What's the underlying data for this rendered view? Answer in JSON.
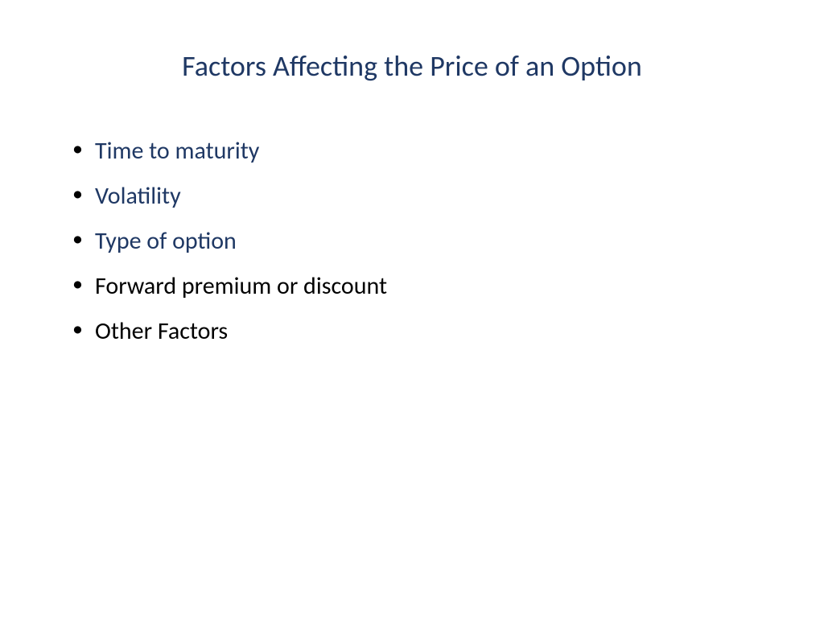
{
  "slide": {
    "title": "Factors Affecting the Price of an Option",
    "title_color": "#1f3864",
    "title_fontsize": 36,
    "background_color": "#ffffff",
    "bullets": [
      {
        "text": "Time to maturity",
        "color": "#1f3864"
      },
      {
        "text": "Volatility",
        "color": "#1f3864"
      },
      {
        "text": "Type of option",
        "color": "#1f3864"
      },
      {
        "text": "Forward premium or discount",
        "color": "#000000"
      },
      {
        "text": "Other Factors",
        "color": "#000000"
      }
    ],
    "bullet_fontsize": 30,
    "bullet_marker_color": "#000000"
  }
}
